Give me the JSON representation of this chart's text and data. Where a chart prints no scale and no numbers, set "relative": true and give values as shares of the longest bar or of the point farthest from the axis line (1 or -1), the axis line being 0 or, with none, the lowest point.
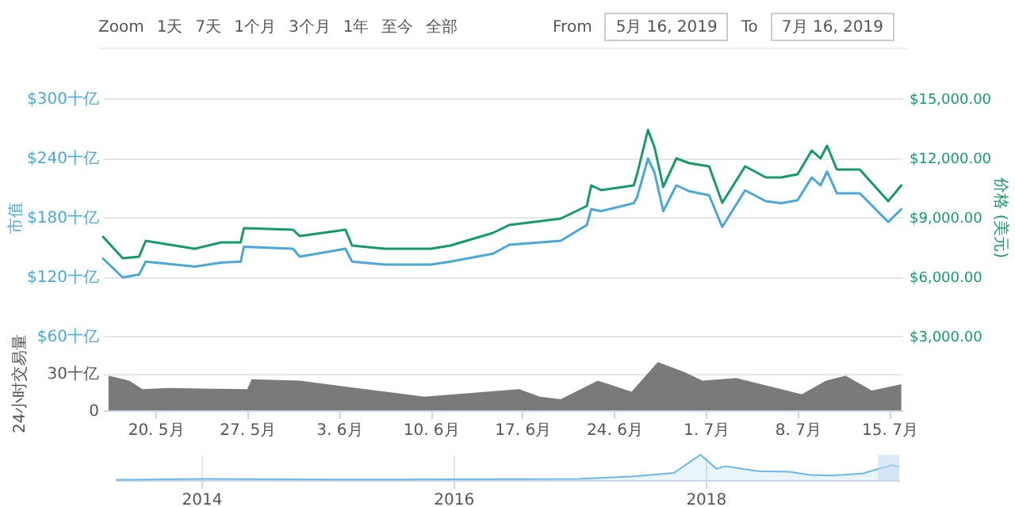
{
  "chart_data": [
    {
      "type": "line",
      "annotations": [
        "Zoom",
        "1天",
        "7天",
        "1个月",
        "3个月",
        "1年",
        "至今",
        "全部",
        "From",
        "5月 16, 2019",
        "To",
        "7月 16, 2019"
      ],
      "ylabel": "市值",
      "y2label": "价格 (美元)",
      "x": [
        "2019-05-16",
        "2019-05-17T12:00",
        "2019-05-18T18:00",
        "2019-05-19T06:00",
        "2019-05-20",
        "2019-05-23",
        "2019-05-25",
        "2019-05-26T12:00",
        "2019-05-26T18:00",
        "2019-05-30T12:00",
        "2019-05-31",
        "2019-06-03T12:00",
        "2019-06-04",
        "2019-06-06T12:00",
        "2019-06-10",
        "2019-06-11T12:00",
        "2019-06-14T18:00",
        "2019-06-16",
        "2019-06-19T22:00",
        "2019-06-21T22:00",
        "2019-06-22T06:00",
        "2019-06-23",
        "2019-06-25T12:00",
        "2019-06-25T18:00",
        "2019-06-26T14:00",
        "2019-06-27T02:00",
        "2019-06-27T18:00",
        "2019-06-28T18:00",
        "2019-06-29T18:00",
        "2019-07-01T06:00",
        "2019-07-02T06:00",
        "2019-07-04",
        "2019-07-05T14:00",
        "2019-07-06T18:00",
        "2019-07-08",
        "2019-07-09T02:00",
        "2019-07-09T18:00",
        "2019-07-10T06:00",
        "2019-07-11",
        "2019-07-12T18:00",
        "2019-07-14T22:00",
        "2019-07-15T22:00"
      ],
      "xlim": [
        "2019-05-16",
        "2019-07-16"
      ],
      "ylim": [
        60,
        300
      ],
      "yticks": [
        {
          "value": 60,
          "label": "$60十亿"
        },
        {
          "value": 120,
          "label": "$120十亿"
        },
        {
          "value": 180,
          "label": "$180十亿"
        },
        {
          "value": 240,
          "label": "$240十亿"
        },
        {
          "value": 300,
          "label": "$300十亿"
        }
      ],
      "y2lim": [
        3000,
        15000
      ],
      "y2ticks": [
        {
          "value": 3000,
          "label": "$3,000.00"
        },
        {
          "value": 6000,
          "label": "$6,000.00"
        },
        {
          "value": 9000,
          "label": "$9,000.00"
        },
        {
          "value": 12000,
          "label": "$12,000.00"
        },
        {
          "value": 15000,
          "label": "$15,000.00"
        }
      ],
      "series": [
        {
          "color": "#4aa8d8",
          "values": [
            138,
            119,
            122,
            135,
            134,
            130,
            134,
            135,
            150,
            148,
            140,
            148,
            135,
            132,
            132,
            135,
            143,
            152,
            156,
            172,
            188,
            186,
            194,
            200,
            239,
            225,
            186,
            212,
            206,
            202,
            170,
            207,
            196,
            194,
            197,
            220,
            212,
            226,
            204,
            204,
            175,
            188
          ]
        },
        {
          "color": "#16996b",
          "axis": "y2",
          "values": [
            8000,
            6920,
            7000,
            7800,
            7720,
            7400,
            7720,
            7720,
            8440,
            8360,
            8040,
            8360,
            7560,
            7400,
            7400,
            7560,
            8200,
            8600,
            8920,
            9560,
            10600,
            10360,
            10600,
            11160,
            13400,
            12520,
            10520,
            11960,
            11720,
            11560,
            9720,
            11560,
            11000,
            11000,
            11160,
            12360,
            11960,
            12600,
            11400,
            11400,
            9800,
            10600
          ]
        }
      ],
      "grid": "y",
      "tick_labels": "y"
    },
    {
      "type": "area",
      "ylabel": "24小时交易量",
      "x": [
        "2019-05-16T10:00",
        "2019-05-18",
        "2019-05-19",
        "2019-05-21",
        "2019-05-27",
        "2019-05-27T08:00",
        "2019-05-31",
        "2019-06-05",
        "2019-06-09T12:00",
        "2019-06-16T18:00",
        "2019-06-18T08:00",
        "2019-06-19T22:00",
        "2019-06-22T18:00",
        "2019-06-25T08:00",
        "2019-06-27T08:00",
        "2019-06-29T08:00",
        "2019-06-30T18:00",
        "2019-07-03T08:00",
        "2019-07-08T08:00",
        "2019-07-10T04:00",
        "2019-07-11T16:00",
        "2019-07-13T16:00",
        "2019-07-15T22:00"
      ],
      "xlim": [
        "2019-05-16",
        "2019-07-16"
      ],
      "xticks": [
        {
          "value": "2019-05-20",
          "label": "20. 5月"
        },
        {
          "value": "2019-05-27",
          "label": "27. 5月"
        },
        {
          "value": "2019-06-03",
          "label": "3. 6月"
        },
        {
          "value": "2019-06-10",
          "label": "10. 6月"
        },
        {
          "value": "2019-06-17",
          "label": "17. 6月"
        },
        {
          "value": "2019-06-24",
          "label": "24. 6月"
        },
        {
          "value": "2019-07-01",
          "label": "1. 7月"
        },
        {
          "value": "2019-07-08",
          "label": "8. 7月"
        },
        {
          "value": "2019-07-15",
          "label": "15. 7月"
        }
      ],
      "ylim": [
        0,
        60
      ],
      "yticks": [
        0,
        {
          "value": 30,
          "label": "30十亿"
        },
        {
          "value": 60,
          "label": null
        }
      ],
      "series": [
        {
          "color": "#6b6b6b",
          "values": [
            28,
            24,
            17,
            18,
            17,
            25,
            24,
            17,
            11,
            17,
            11,
            9,
            24,
            15,
            39,
            31,
            24,
            26,
            13,
            24,
            28,
            16,
            21
          ]
        }
      ],
      "grid": "y"
    },
    {
      "type": "area",
      "relative": true,
      "x": [
        "2013-04-28",
        "2014-01",
        "2015-01",
        "2016-01",
        "2017-01",
        "2017-06",
        "2017-10",
        "2017-12-17",
        "2018-02",
        "2018-03",
        "2018-06",
        "2018-09",
        "2018-11",
        "2019-01",
        "2019-04",
        "2019-06-26",
        "2019-07-16"
      ],
      "xlim": [
        "2013-04-28",
        "2019-07-16"
      ],
      "xticks": [
        "2014",
        "2016",
        "2018"
      ],
      "series": [
        {
          "color": "#6cb8e6",
          "values": [
            0.01,
            0.05,
            0.02,
            0.03,
            0.05,
            0.14,
            0.28,
            1,
            0.45,
            0.55,
            0.35,
            0.33,
            0.2,
            0.18,
            0.26,
            0.6,
            0.52
          ]
        }
      ],
      "bands": [
        {
          "axis": "x",
          "from": "2019-05-16",
          "to": "2019-07-16",
          "color": "#c5dbf2"
        }
      ],
      "grid": "x"
    }
  ]
}
